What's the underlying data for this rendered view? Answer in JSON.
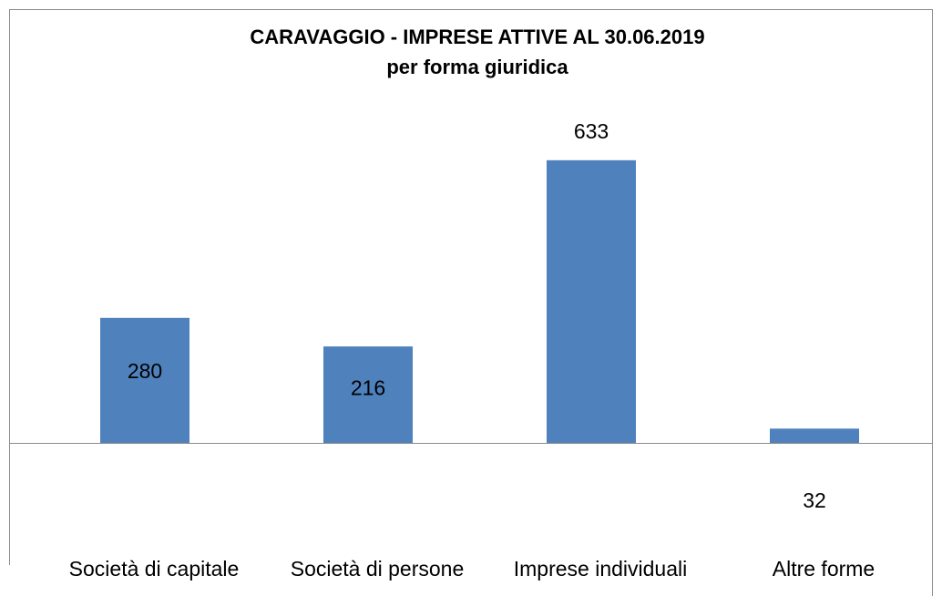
{
  "chart_data": {
    "type": "bar",
    "title": "CARAVAGGIO - IMPRESE ATTIVE AL 30.06.2019",
    "subtitle": "per forma giuridica",
    "categories": [
      "Società di capitale",
      "Società di persone",
      "Imprese individuali",
      "Altre forme"
    ],
    "values": [
      280,
      216,
      633,
      32
    ],
    "color": "#4f81bd",
    "ylim": [
      0,
      700
    ]
  }
}
